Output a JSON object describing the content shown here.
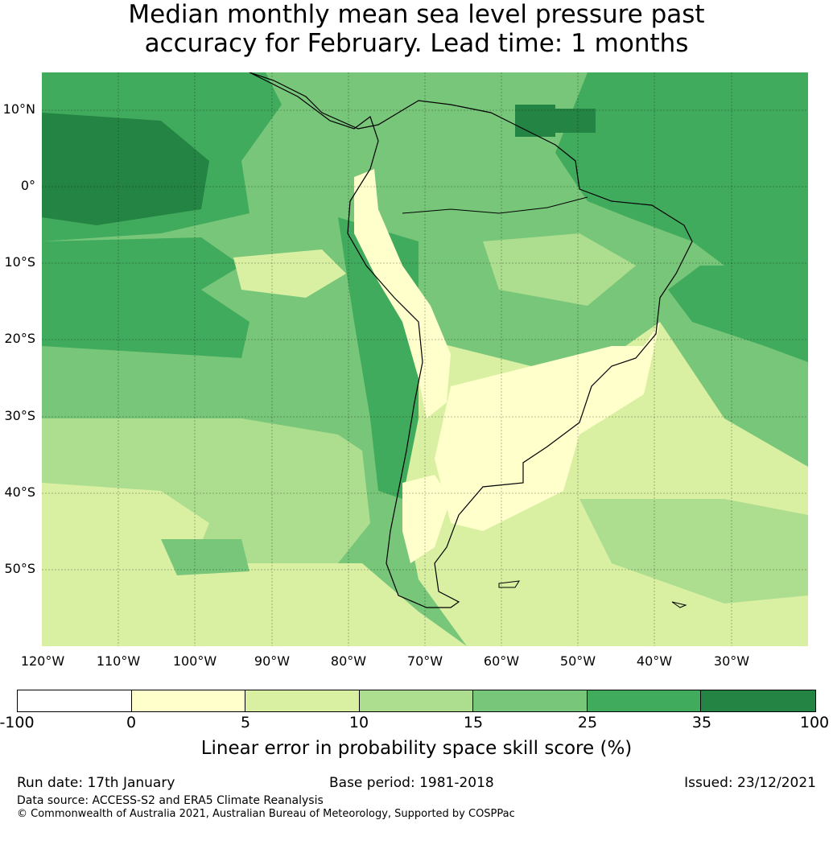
{
  "title_line1": "Median monthly mean sea level pressure past",
  "title_line2": "accuracy for February. Lead time: 1 months",
  "lat_labels": [
    "10°N",
    "0°",
    "10°S",
    "20°S",
    "30°S",
    "40°S",
    "50°S"
  ],
  "lon_labels": [
    "120°W",
    "110°W",
    "100°W",
    "90°W",
    "80°W",
    "70°W",
    "60°W",
    "50°W",
    "40°W",
    "30°W"
  ],
  "colorbar": {
    "ticks": [
      "-100",
      "0",
      "5",
      "10",
      "15",
      "25",
      "35",
      "100"
    ],
    "colors": [
      "#ffffff",
      "#ffffcc",
      "#d9f0a3",
      "#addd8e",
      "#78c679",
      "#41ab5d",
      "#238443"
    ],
    "label": "Linear error in probability space skill score (%)"
  },
  "footer": {
    "run_date": "Run date: 17th January",
    "base_period": "Base period: 1981-2018",
    "issued": "Issued: 23/12/2021",
    "data_source": "Data source: ACCESS-S2 and ERA5 Climate Reanalysis",
    "copyright": "© Commonwealth of Australia 2021, Australian Bureau of Meteorology, Supported by COSPPac"
  }
}
